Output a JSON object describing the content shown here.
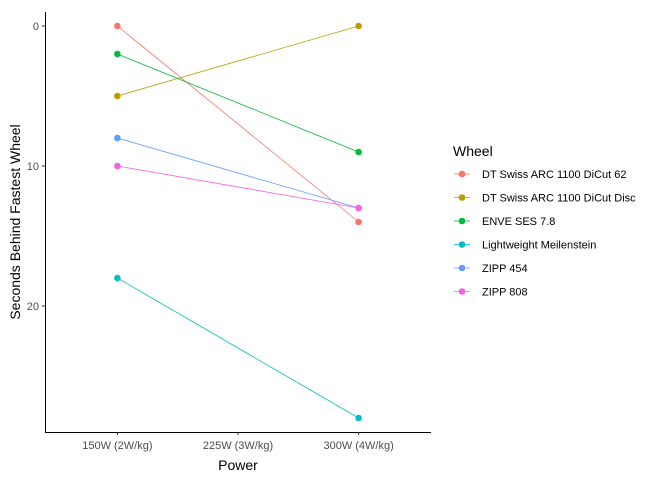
{
  "chart_data": {
    "type": "line",
    "title": "",
    "xlabel": "Power",
    "ylabel": "Seconds Behind Fastest Wheel",
    "x_categories": [
      "150W (2W/kg)",
      "225W (3W/kg)",
      "300W (4W/kg)"
    ],
    "y_axis": {
      "reversed": true,
      "ylim": [
        29,
        -1
      ],
      "ticks": [
        0,
        10,
        20
      ]
    },
    "grid": false,
    "legend": {
      "title": "Wheel",
      "position": "right"
    },
    "series": [
      {
        "name": "DT Swiss ARC 1100 DiCut 62",
        "color": "#F8766D",
        "points": [
          {
            "x": "150W (2W/kg)",
            "y": 0
          },
          {
            "x": "300W (4W/kg)",
            "y": 14
          }
        ]
      },
      {
        "name": "DT Swiss ARC 1100 DiCut Disc",
        "color": "#B79F00",
        "points": [
          {
            "x": "150W (2W/kg)",
            "y": 5
          },
          {
            "x": "300W (4W/kg)",
            "y": 0
          }
        ]
      },
      {
        "name": "ENVE SES 7.8",
        "color": "#00BA38",
        "points": [
          {
            "x": "150W (2W/kg)",
            "y": 2
          },
          {
            "x": "300W (4W/kg)",
            "y": 9
          }
        ]
      },
      {
        "name": "Lightweight Meilenstein",
        "color": "#00BFC4",
        "points": [
          {
            "x": "150W (2W/kg)",
            "y": 18
          },
          {
            "x": "300W (4W/kg)",
            "y": 28
          }
        ]
      },
      {
        "name": "ZIPP 454",
        "color": "#619CFF",
        "points": [
          {
            "x": "150W (2W/kg)",
            "y": 8
          },
          {
            "x": "300W (4W/kg)",
            "y": 13
          }
        ]
      },
      {
        "name": "ZIPP 808",
        "color": "#F564E3",
        "points": [
          {
            "x": "150W (2W/kg)",
            "y": 10
          },
          {
            "x": "300W (4W/kg)",
            "y": 13
          }
        ]
      }
    ]
  }
}
